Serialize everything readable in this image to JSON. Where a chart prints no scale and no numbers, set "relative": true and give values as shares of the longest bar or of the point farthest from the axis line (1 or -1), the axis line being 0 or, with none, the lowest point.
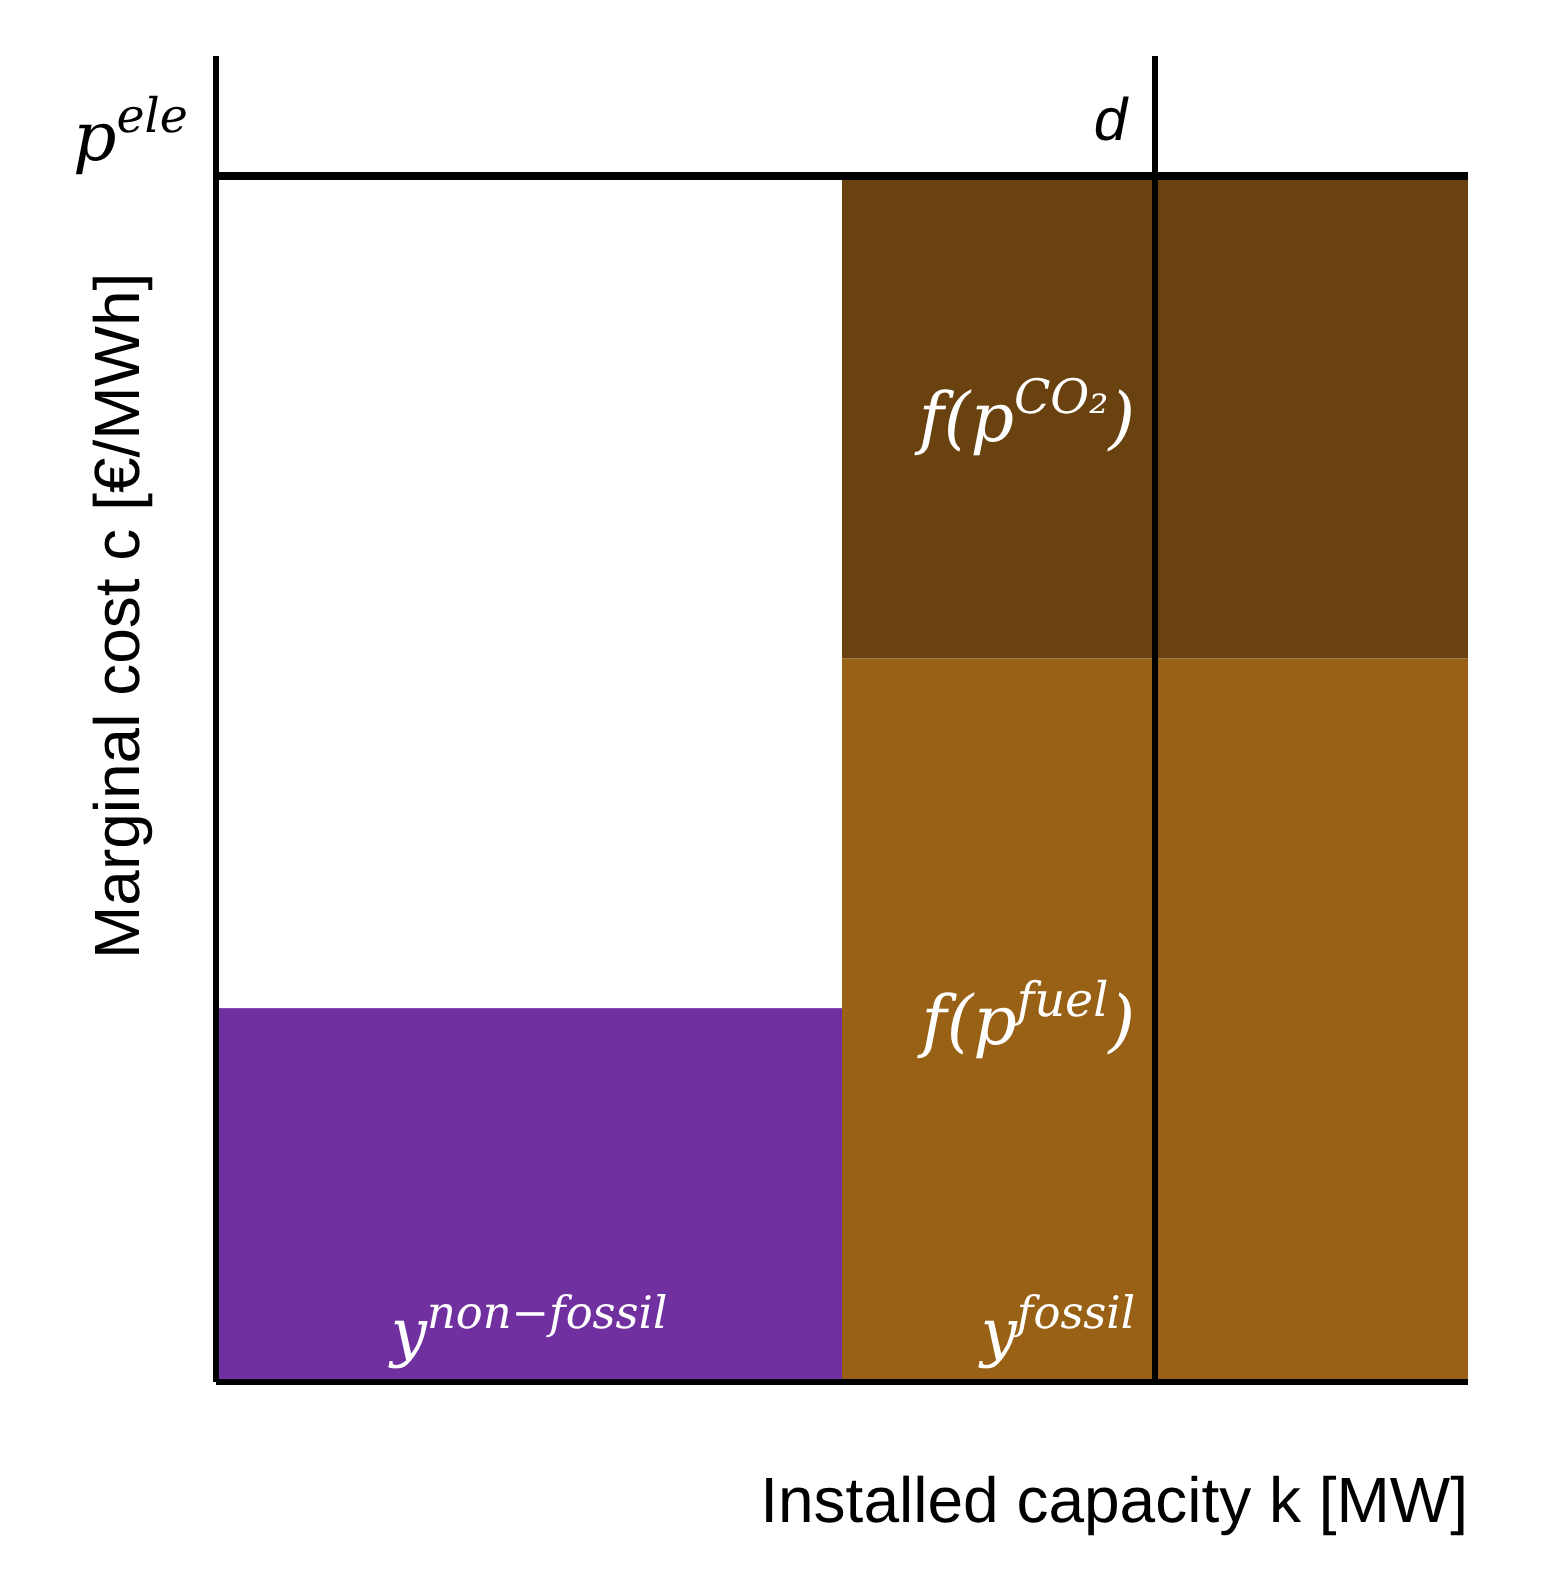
{
  "chart_data": {
    "type": "bar",
    "stacked": true,
    "relative": true,
    "xlabel": "Installed capacity k [MW]",
    "ylabel": "Marginal cost c [€/MWh]",
    "categories": [
      "y$^{non−fossil}$",
      "y$^{fossil}$"
    ],
    "series": [
      {
        "name": "f(p$^{fuel}$)",
        "colors": [
          "#7030a0",
          "#986115"
        ],
        "values": [
          0.31,
          0.6
        ]
      },
      {
        "name": "f(p$^{CO₂}$)",
        "color": "#6a4210",
        "values": [
          null,
          0.4
        ]
      }
    ],
    "ref_lines": [
      {
        "axis": "y",
        "value": 1,
        "label": "p$^{ele}$",
        "color": "#000000"
      },
      {
        "axis": "x",
        "value": "y$^{fossil}$",
        "label": "d",
        "color": "#000000"
      }
    ],
    "legend": false,
    "grid": false
  }
}
